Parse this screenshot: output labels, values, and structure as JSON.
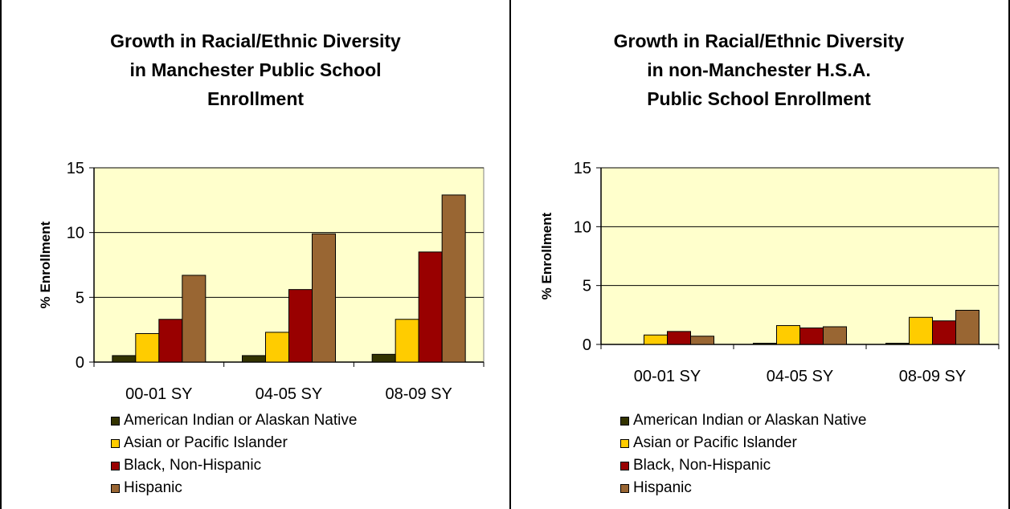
{
  "chart_data": [
    {
      "type": "bar",
      "title": [
        "Growth in Racial/Ethnic Diversity",
        "in Manchester Public School",
        "Enrollment"
      ],
      "ylabel": "% Enrollment",
      "xlabel": "",
      "ylim": [
        0,
        15
      ],
      "yticks": [
        0,
        5,
        10,
        15
      ],
      "categories": [
        "00-01 SY",
        "04-05 SY",
        "08-09 SY"
      ],
      "series": [
        {
          "name": "American Indian or Alaskan Native",
          "values": [
            0.5,
            0.5,
            0.6
          ]
        },
        {
          "name": "Asian or Pacific Islander",
          "values": [
            2.2,
            2.3,
            3.3
          ]
        },
        {
          "name": "Black, Non-Hispanic",
          "values": [
            3.3,
            5.6,
            8.5
          ]
        },
        {
          "name": "Hispanic",
          "values": [
            6.7,
            9.9,
            12.9
          ]
        }
      ],
      "legend_position": "bottom",
      "grid": true
    },
    {
      "type": "bar",
      "title": [
        "Growth in Racial/Ethnic Diversity",
        "in non-Manchester H.S.A.",
        "Public School Enrollment"
      ],
      "ylabel": "% Enrollment",
      "xlabel": "",
      "ylim": [
        0,
        15
      ],
      "yticks": [
        0,
        5,
        10,
        15
      ],
      "categories": [
        "00-01 SY",
        "04-05 SY",
        "08-09 SY"
      ],
      "series": [
        {
          "name": "American Indian or Alaskan Native",
          "values": [
            0.0,
            0.1,
            0.1
          ]
        },
        {
          "name": "Asian or Pacific Islander",
          "values": [
            0.8,
            1.6,
            2.3
          ]
        },
        {
          "name": "Black, Non-Hispanic",
          "values": [
            1.1,
            1.4,
            2.0
          ]
        },
        {
          "name": "Hispanic",
          "values": [
            0.7,
            1.5,
            2.9
          ]
        }
      ],
      "legend_position": "bottom",
      "grid": true
    }
  ],
  "colors": {
    "series": [
      "#333300",
      "#ffcc00",
      "#990000",
      "#996633"
    ],
    "plot_background": "#ffffcc"
  }
}
